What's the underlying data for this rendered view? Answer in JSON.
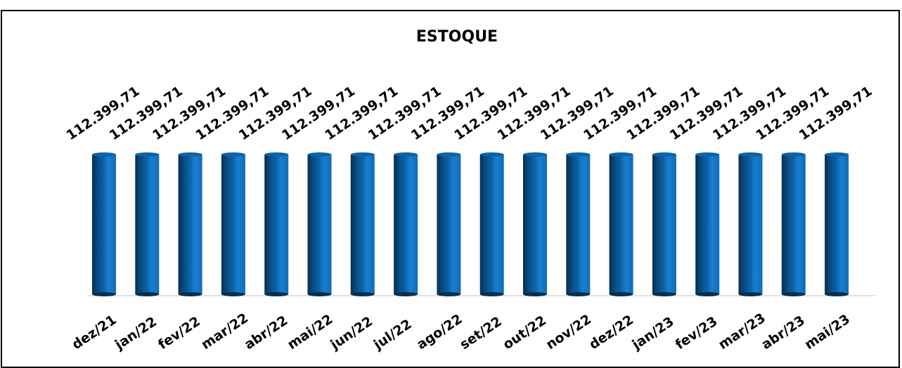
{
  "chart_data": {
    "type": "bar",
    "title": "ESTOQUE",
    "categories": [
      "dez/21",
      "jan/22",
      "fev/22",
      "mar/22",
      "abr/22",
      "mai/22",
      "jun/22",
      "jul/22",
      "ago/22",
      "set/22",
      "out/22",
      "nov/22",
      "dez/22",
      "jan/23",
      "fev/23",
      "mar/23",
      "abr/23",
      "mai/23"
    ],
    "values": [
      112399.71,
      112399.71,
      112399.71,
      112399.71,
      112399.71,
      112399.71,
      112399.71,
      112399.71,
      112399.71,
      112399.71,
      112399.71,
      112399.71,
      112399.71,
      112399.71,
      112399.71,
      112399.71,
      112399.71,
      112399.71
    ],
    "data_labels": [
      "112.399,71",
      "112.399,71",
      "112.399,71",
      "112.399,71",
      "112.399,71",
      "112.399,71",
      "112.399,71",
      "112.399,71",
      "112.399,71",
      "112.399,71",
      "112.399,71",
      "112.399,71",
      "112.399,71",
      "112.399,71",
      "112.399,71",
      "112.399,71",
      "112.399,71",
      "112.399,71"
    ],
    "xlabel": "",
    "ylabel": "",
    "ylim": [
      0,
      112399.71
    ],
    "grid": false,
    "legend": "none",
    "bar_style": "3d-cylinder",
    "colors": {
      "bar_light": "#1a7fd0",
      "bar_mid": "#0b63a8",
      "bar_dark": "#062f50",
      "axis": "#d9d9d9"
    }
  }
}
